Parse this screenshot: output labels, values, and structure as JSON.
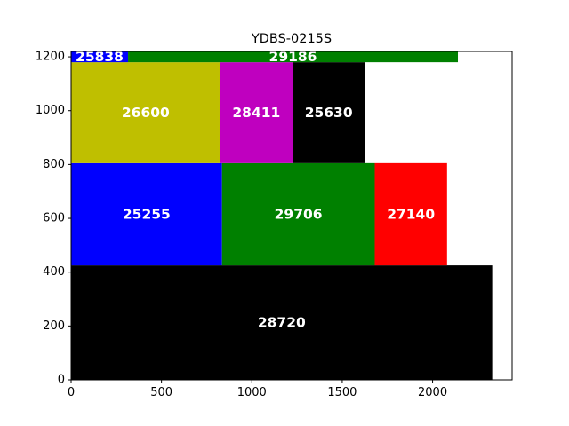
{
  "chart_data": {
    "type": "bar",
    "title": "YDBS-0215S",
    "xlabel": "",
    "ylabel": "",
    "xlim": [
      0,
      2440
    ],
    "ylim": [
      0,
      1220
    ],
    "xticks": [
      0,
      500,
      1000,
      1500,
      2000
    ],
    "yticks": [
      0,
      200,
      400,
      600,
      800,
      1000,
      1200
    ],
    "grid": false,
    "rectangles": [
      {
        "label": "28720",
        "x": 0,
        "y": 0,
        "width": 2330,
        "height": 425,
        "color": "#000000"
      },
      {
        "label": "25255",
        "x": 0,
        "y": 425,
        "width": 835,
        "height": 380,
        "color": "#0000ff"
      },
      {
        "label": "29706",
        "x": 835,
        "y": 425,
        "width": 845,
        "height": 380,
        "color": "#008000"
      },
      {
        "label": "27140",
        "x": 1680,
        "y": 425,
        "width": 400,
        "height": 380,
        "color": "#ff0000"
      },
      {
        "label": "26600",
        "x": 0,
        "y": 805,
        "width": 825,
        "height": 375,
        "color": "#bfbf00"
      },
      {
        "label": "28411",
        "x": 825,
        "y": 805,
        "width": 400,
        "height": 375,
        "color": "#bf00bf"
      },
      {
        "label": "25630",
        "x": 1225,
        "y": 805,
        "width": 400,
        "height": 375,
        "color": "#000000"
      },
      {
        "label": "25838",
        "x": 0,
        "y": 1180,
        "width": 315,
        "height": 40,
        "color": "#0000ff"
      },
      {
        "label": "29186",
        "x": 315,
        "y": 1180,
        "width": 1825,
        "height": 40,
        "color": "#008000"
      }
    ]
  }
}
